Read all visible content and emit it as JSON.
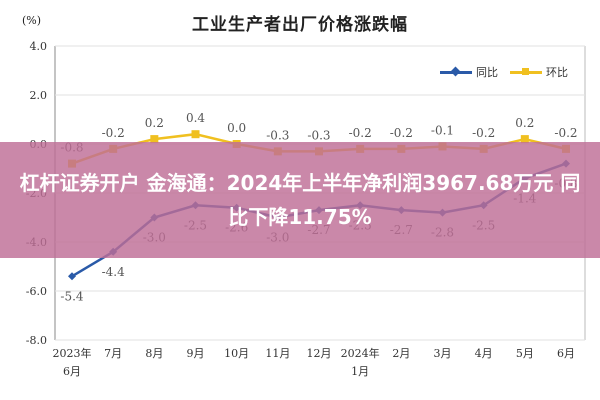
{
  "unit_label": "(%)",
  "chart_data": {
    "type": "line",
    "title": "工业生产者出厂价格涨跌幅",
    "categories": [
      "2023年6月",
      "7月",
      "8月",
      "9月",
      "10月",
      "11月",
      "12月",
      "2024年1月",
      "2月",
      "3月",
      "4月",
      "5月",
      "6月"
    ],
    "tick_labels": [
      {
        "line1": "2023年",
        "line2": "6月"
      },
      {
        "line1": "7月",
        "line2": ""
      },
      {
        "line1": "8月",
        "line2": ""
      },
      {
        "line1": "9月",
        "line2": ""
      },
      {
        "line1": "10月",
        "line2": ""
      },
      {
        "line1": "11月",
        "line2": ""
      },
      {
        "line1": "12月",
        "line2": ""
      },
      {
        "line1": "2024年",
        "line2": "1月"
      },
      {
        "line1": "2月",
        "line2": ""
      },
      {
        "line1": "3月",
        "line2": ""
      },
      {
        "line1": "4月",
        "line2": ""
      },
      {
        "line1": "5月",
        "line2": ""
      },
      {
        "line1": "6月",
        "line2": ""
      }
    ],
    "series": [
      {
        "name": "同比",
        "color": "#2a5aa8",
        "values": [
          -5.4,
          -4.4,
          -3.0,
          -2.5,
          -2.6,
          -3.0,
          -2.7,
          -2.5,
          -2.7,
          -2.8,
          -2.5,
          -1.4,
          -0.8
        ],
        "labels": [
          "-5.4",
          "-4.4",
          "-3.0",
          "-2.5",
          "-2.6",
          "-3.0",
          "-2.7",
          "-2.5",
          "-2.7",
          "-2.8",
          "-2.5",
          "-1.4",
          "-0.8"
        ]
      },
      {
        "name": "环比",
        "color": "#f0c020",
        "values": [
          -0.8,
          -0.2,
          0.2,
          0.4,
          0.0,
          -0.3,
          -0.3,
          -0.2,
          -0.2,
          -0.1,
          -0.2,
          0.2,
          -0.2
        ],
        "labels": [
          "-0.8",
          "-0.2",
          "0.2",
          "0.4",
          "0.0",
          "-0.3",
          "-0.3",
          "-0.2",
          "-0.2",
          "-0.1",
          "-0.2",
          "0.2",
          "-0.2"
        ]
      }
    ],
    "yticks": [
      "4.0",
      "2.0",
      "0.0",
      "-2.0",
      "-4.0",
      "-6.0",
      "-8.0"
    ],
    "ylim": [
      -8,
      4
    ],
    "grid": true,
    "legend_position": "top-right"
  },
  "overlay": {
    "headline": "杠杆证券开户 金海通：2024年上半年净利润3967.68万元 同比下降11.75%"
  }
}
